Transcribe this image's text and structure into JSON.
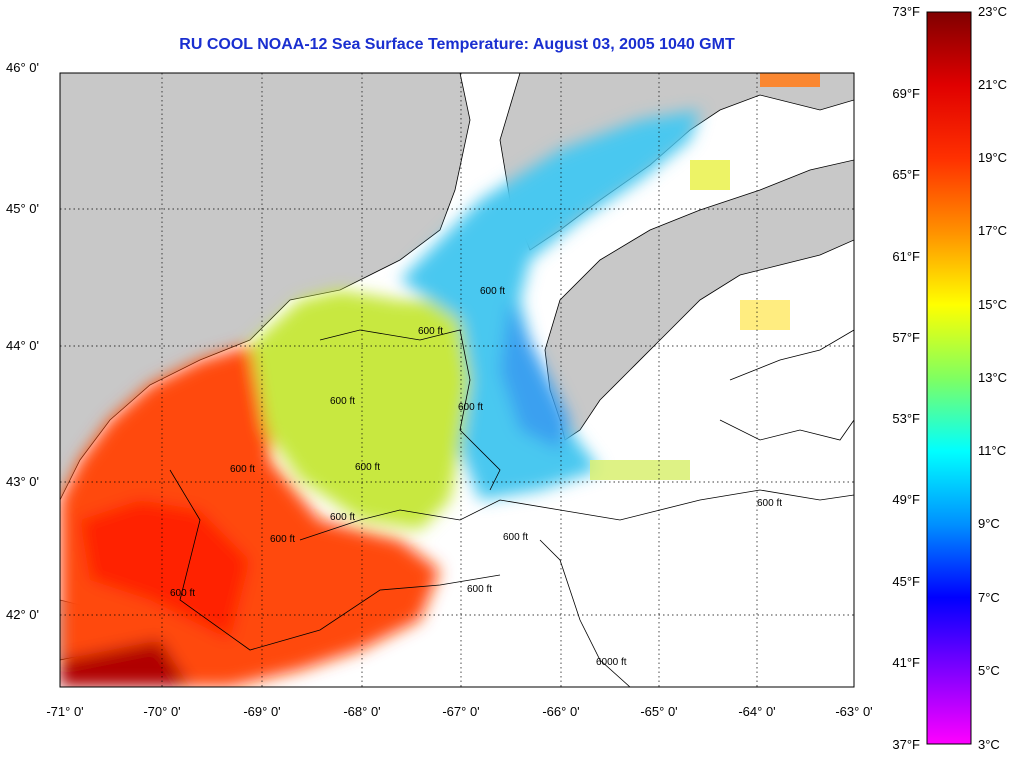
{
  "title": "RU COOL  NOAA-12  Sea Surface Temperature:  August 03, 2005 1040 GMT",
  "latitude_labels": [
    "46° 0'",
    "45° 0'",
    "44° 0'",
    "43° 0'",
    "42° 0'"
  ],
  "longitude_labels": [
    "-71° 0'",
    "-70° 0'",
    "-69° 0'",
    "-68° 0'",
    "-67° 0'",
    "-66° 0'",
    "-65° 0'",
    "-64° 0'",
    "-63° 0'"
  ],
  "colorbar": {
    "fahrenheit_labels": [
      "73°F",
      "69°F",
      "65°F",
      "61°F",
      "57°F",
      "53°F",
      "49°F",
      "45°F",
      "41°F",
      "37°F"
    ],
    "celsius_labels": [
      "23°C",
      "21°C",
      "19°C",
      "17°C",
      "15°C",
      "13°C",
      "11°C",
      "9°C",
      "7°C",
      "5°C",
      "3°C"
    ]
  },
  "contour_labels": [
    "600 ft",
    "600 ft",
    "600 ft",
    "600 ft",
    "600 ft",
    "600 ft",
    "600 ft",
    "600 ft",
    "600 ft",
    "600 ft",
    "600 ft",
    "600 ft",
    "6000 ft"
  ],
  "colors": {
    "title": "#1a2fd0",
    "land": "#c8c8c8",
    "no_data": "#ffffff"
  }
}
